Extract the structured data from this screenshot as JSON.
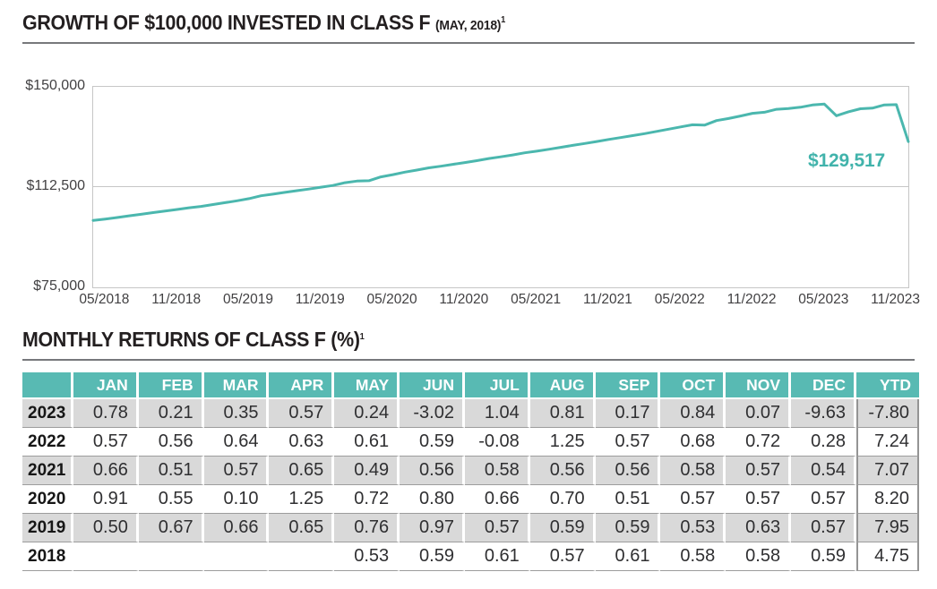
{
  "growth_section": {
    "title_main": "GROWTH OF $100,000 INVESTED IN CLASS F ",
    "title_paren": "(MAY, 2018)",
    "title_sup": "1",
    "end_label": "$129,517"
  },
  "chart_data": {
    "type": "line",
    "title": "Growth of $100,000 invested in Class F (May, 2018)",
    "start_value": 100000,
    "months": [
      "05/2018",
      "06/2018",
      "07/2018",
      "08/2018",
      "09/2018",
      "10/2018",
      "11/2018",
      "12/2018",
      "01/2019",
      "02/2019",
      "03/2019",
      "04/2019",
      "05/2019",
      "06/2019",
      "07/2019",
      "08/2019",
      "09/2019",
      "10/2019",
      "11/2019",
      "12/2019",
      "01/2020",
      "02/2020",
      "03/2020",
      "04/2020",
      "05/2020",
      "06/2020",
      "07/2020",
      "08/2020",
      "09/2020",
      "10/2020",
      "11/2020",
      "12/2020",
      "01/2021",
      "02/2021",
      "03/2021",
      "04/2021",
      "05/2021",
      "06/2021",
      "07/2021",
      "08/2021",
      "09/2021",
      "10/2021",
      "11/2021",
      "12/2021",
      "01/2022",
      "02/2022",
      "03/2022",
      "04/2022",
      "05/2022",
      "06/2022",
      "07/2022",
      "08/2022",
      "09/2022",
      "10/2022",
      "11/2022",
      "12/2022",
      "01/2023",
      "02/2023",
      "03/2023",
      "04/2023",
      "05/2023",
      "06/2023",
      "07/2023",
      "08/2023",
      "09/2023",
      "10/2023",
      "11/2023",
      "12/2023"
    ],
    "values": [
      100530,
      101123,
      101740,
      102320,
      102944,
      103541,
      104142,
      104756,
      105280,
      105985,
      106685,
      107378,
      108194,
      109244,
      109867,
      110515,
      111167,
      111757,
      112461,
      113102,
      114131,
      114759,
      114873,
      116309,
      117147,
      118084,
      118863,
      119695,
      120306,
      120991,
      121681,
      122375,
      123182,
      123811,
      124516,
      125326,
      125940,
      126645,
      127379,
      128093,
      128810,
      129557,
      130296,
      130999,
      131746,
      132484,
      133332,
      134172,
      134990,
      135787,
      135678,
      137374,
      138157,
      139096,
      140098,
      140490,
      141586,
      141883,
      142380,
      143191,
      143535,
      139200,
      140648,
      141787,
      142028,
      143221,
      143322,
      129517
    ],
    "end_value_label": "$129,517",
    "ylim": [
      75000,
      150000
    ],
    "y_ticks": [
      {
        "label": "$150,000",
        "value": 150000
      },
      {
        "label": "$112,500",
        "value": 112500
      },
      {
        "label": "$75,000",
        "value": 75000
      }
    ],
    "x_ticks": [
      "05/2018",
      "11/2018",
      "05/2019",
      "11/2019",
      "05/2020",
      "11/2020",
      "05/2021",
      "11/2021",
      "05/2022",
      "11/2022",
      "05/2023",
      "11/2023"
    ],
    "grid": "horizontal gridline at 112500 only, plot box border",
    "legend": "none",
    "line_color": "#4bb7ae"
  },
  "returns_section": {
    "title_main": "MONTHLY RETURNS OF CLASS F (%)",
    "title_sup": "1",
    "table": {
      "columns": [
        "",
        "JAN",
        "FEB",
        "MAR",
        "APR",
        "MAY",
        "JUN",
        "JUL",
        "AUG",
        "SEP",
        "OCT",
        "NOV",
        "DEC",
        "YTD"
      ],
      "rows": [
        {
          "year": "2023",
          "values": [
            "0.78",
            "0.21",
            "0.35",
            "0.57",
            "0.24",
            "-3.02",
            "1.04",
            "0.81",
            "0.17",
            "0.84",
            "0.07",
            "-9.63",
            "-7.80"
          ]
        },
        {
          "year": "2022",
          "values": [
            "0.57",
            "0.56",
            "0.64",
            "0.63",
            "0.61",
            "0.59",
            "-0.08",
            "1.25",
            "0.57",
            "0.68",
            "0.72",
            "0.28",
            "7.24"
          ]
        },
        {
          "year": "2021",
          "values": [
            "0.66",
            "0.51",
            "0.57",
            "0.65",
            "0.49",
            "0.56",
            "0.58",
            "0.56",
            "0.56",
            "0.58",
            "0.57",
            "0.54",
            "7.07"
          ]
        },
        {
          "year": "2020",
          "values": [
            "0.91",
            "0.55",
            "0.10",
            "1.25",
            "0.72",
            "0.80",
            "0.66",
            "0.70",
            "0.51",
            "0.57",
            "0.57",
            "0.57",
            "8.20"
          ]
        },
        {
          "year": "2019",
          "values": [
            "0.50",
            "0.67",
            "0.66",
            "0.65",
            "0.76",
            "0.97",
            "0.57",
            "0.59",
            "0.59",
            "0.53",
            "0.63",
            "0.57",
            "7.95"
          ]
        },
        {
          "year": "2018",
          "values": [
            "",
            "",
            "",
            "",
            "0.53",
            "0.59",
            "0.61",
            "0.57",
            "0.61",
            "0.58",
            "0.58",
            "0.59",
            "4.75"
          ]
        }
      ]
    }
  },
  "colors": {
    "teal_header": "#58bab3",
    "teal_line": "#4bb7ae",
    "teal_label": "#41b3ab",
    "row_gray": "#d9d9d9",
    "row_separator": "#9c9c9c",
    "ytd_border": "#949494",
    "plot_border": "#c6c6c6",
    "title_ink": "#231f20",
    "axis_text": "#414042",
    "underline": "#77787b"
  }
}
